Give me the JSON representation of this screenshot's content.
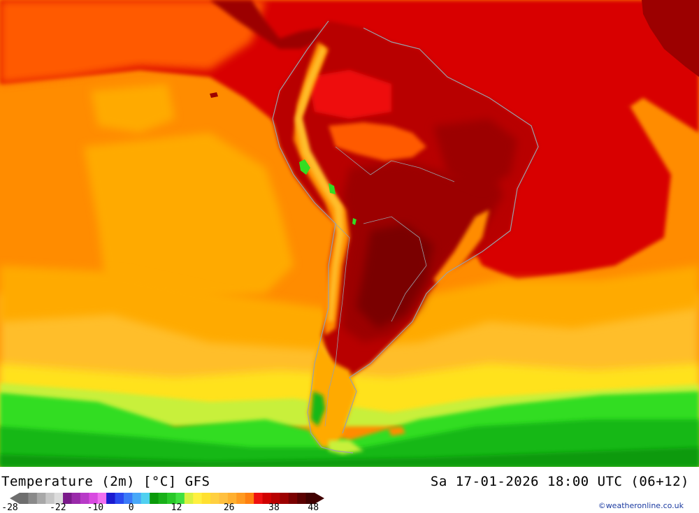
{
  "map": {
    "colors": {
      "deep_red": "#7a0000",
      "dark_red": "#9c0000",
      "red_brown": "#b80000",
      "red": "#d80000",
      "bright_red": "#ee1010",
      "orange_red": "#ff5a00",
      "orange": "#ff8c00",
      "light_orange": "#ffaa00",
      "amber": "#ffbe2a",
      "yellow": "#ffe21a",
      "yellow_green": "#c8f03a",
      "green": "#33dd22",
      "mid_green": "#18b818",
      "dark_green": "#0a9a0a",
      "coast": "#9aa0a8"
    }
  },
  "footer": {
    "title_left": "Temperature (2m) [°C] GFS",
    "title_right": "Sa 17-01-2026 18:00 UTC (06+12)",
    "credit": "©weatheronline.co.uk"
  },
  "legend": {
    "colors": [
      "#6e6e6e",
      "#8a8a8a",
      "#a8a8a8",
      "#c6c6c6",
      "#dcdcdc",
      "#7a1a8a",
      "#9a2aaa",
      "#b83ac8",
      "#d84ae0",
      "#f070f0",
      "#1a1ad0",
      "#2a4af0",
      "#3a7af8",
      "#48a8f8",
      "#50d0f0",
      "#0a9a0a",
      "#18b018",
      "#28c828",
      "#40e040",
      "#d8f040",
      "#fff040",
      "#ffe030",
      "#ffd040",
      "#ffc040",
      "#ffb030",
      "#ff9a20",
      "#ff8010",
      "#ee1010",
      "#d00000",
      "#b80000",
      "#9c0000",
      "#7a0000",
      "#5a0000",
      "#400000"
    ],
    "ticks": [
      {
        "label": "-28",
        "pos": 0.0
      },
      {
        "label": "-22",
        "pos": 0.153
      },
      {
        "label": "-10",
        "pos": 0.272
      },
      {
        "label": "0",
        "pos": 0.386
      },
      {
        "label": "12",
        "pos": 0.53
      },
      {
        "label": "26",
        "pos": 0.697
      },
      {
        "label": "38",
        "pos": 0.84
      },
      {
        "label": "48",
        "pos": 0.965
      }
    ]
  }
}
